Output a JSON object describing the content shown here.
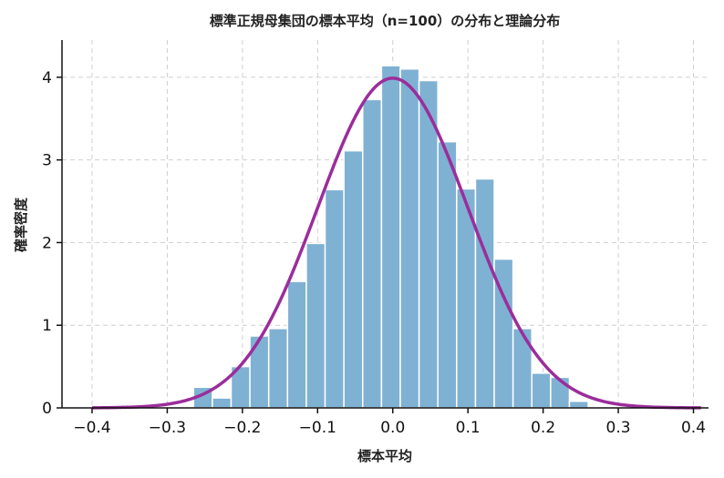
{
  "chart_data": {
    "type": "bar",
    "title": "標準正規母集団の標本平均（n=100）の分布と理論分布",
    "xlabel": "標本平均",
    "ylabel": "確率密度",
    "xlim": [
      -0.44,
      0.42
    ],
    "ylim": [
      0,
      4.45
    ],
    "xticks": [
      -0.4,
      -0.3,
      -0.2,
      -0.1,
      0.0,
      0.1,
      0.2,
      0.3,
      0.4
    ],
    "xtick_labels": [
      "−0.4",
      "−0.3",
      "−0.2",
      "−0.1",
      "0.0",
      "0.1",
      "0.2",
      "0.3",
      "0.4"
    ],
    "yticks": [
      0,
      1,
      2,
      3,
      4
    ],
    "ytick_labels": [
      "0",
      "1",
      "2",
      "3",
      "4"
    ],
    "grid": true,
    "histogram": {
      "bin_edges": [
        -0.265,
        -0.24,
        -0.215,
        -0.19,
        -0.165,
        -0.14,
        -0.115,
        -0.09,
        -0.065,
        -0.04,
        -0.015,
        0.01,
        0.035,
        0.06,
        0.085,
        0.11,
        0.135,
        0.16,
        0.185,
        0.21,
        0.235,
        0.26
      ],
      "densities": [
        0.25,
        0.12,
        0.5,
        0.87,
        0.96,
        1.53,
        1.99,
        2.64,
        3.11,
        3.73,
        4.14,
        4.1,
        3.96,
        3.22,
        2.65,
        2.77,
        1.8,
        0.96,
        0.42,
        0.37,
        0.08
      ],
      "color": "#7fb1d3"
    },
    "curve": {
      "distribution": "normal",
      "mean": 0,
      "sd": 0.1,
      "x_range": [
        -0.4,
        0.41
      ],
      "color": "#9b2d9b"
    }
  }
}
